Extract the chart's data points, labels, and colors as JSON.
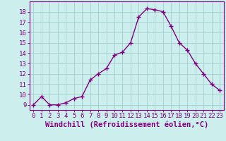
{
  "x": [
    0,
    1,
    2,
    3,
    4,
    5,
    6,
    7,
    8,
    9,
    10,
    11,
    12,
    13,
    14,
    15,
    16,
    17,
    18,
    19,
    20,
    21,
    22,
    23
  ],
  "y": [
    9.0,
    9.8,
    9.0,
    9.0,
    9.2,
    9.6,
    9.8,
    11.4,
    12.0,
    12.5,
    13.8,
    14.1,
    15.0,
    17.5,
    18.3,
    18.2,
    18.0,
    16.6,
    15.0,
    14.3,
    13.0,
    12.0,
    11.0,
    10.4
  ],
  "line_color": "#800080",
  "marker": "+",
  "marker_size": 4,
  "marker_lw": 1.0,
  "line_width": 1.0,
  "bg_color": "#cceeed",
  "grid_color": "#aad4d4",
  "xlabel": "Windchill (Refroidissement éolien,°C)",
  "ylabel": "",
  "xlim": [
    -0.5,
    23.5
  ],
  "ylim": [
    8.5,
    19.0
  ],
  "yticks": [
    9,
    10,
    11,
    12,
    13,
    14,
    15,
    16,
    17,
    18
  ],
  "xticks": [
    0,
    1,
    2,
    3,
    4,
    5,
    6,
    7,
    8,
    9,
    10,
    11,
    12,
    13,
    14,
    15,
    16,
    17,
    18,
    19,
    20,
    21,
    22,
    23
  ],
  "tick_fontsize": 6.5,
  "xlabel_fontsize": 7.5,
  "spine_color": "#800080"
}
